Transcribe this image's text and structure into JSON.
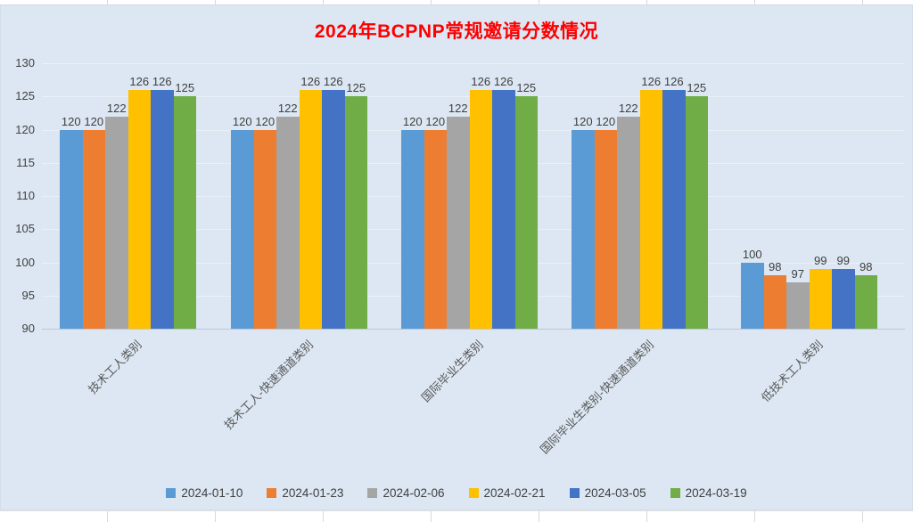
{
  "chart_data": {
    "type": "bar",
    "title": "2024年BCPNP常规邀请分数情况",
    "categories": [
      "技术工人类别",
      "技术工人-快速通道类别",
      "国际毕业生类别",
      "国际毕业生类别-快速通道类别",
      "低技术工人类别"
    ],
    "series": [
      {
        "name": "2024-01-10",
        "color": "#5b9bd5",
        "values": [
          120,
          120,
          120,
          120,
          100
        ]
      },
      {
        "name": "2024-01-23",
        "color": "#ed7d31",
        "values": [
          120,
          120,
          120,
          120,
          98
        ]
      },
      {
        "name": "2024-02-06",
        "color": "#a5a5a5",
        "values": [
          122,
          122,
          122,
          122,
          97
        ]
      },
      {
        "name": "2024-02-21",
        "color": "#ffc000",
        "values": [
          126,
          126,
          126,
          126,
          99
        ]
      },
      {
        "name": "2024-03-05",
        "color": "#4472c4",
        "values": [
          126,
          126,
          126,
          126,
          99
        ]
      },
      {
        "name": "2024-03-19",
        "color": "#70ad47",
        "values": [
          125,
          125,
          125,
          125,
          98
        ]
      }
    ],
    "ylim": [
      90,
      130
    ],
    "yticks": [
      90,
      95,
      100,
      105,
      110,
      115,
      120,
      125,
      130
    ],
    "grid": true,
    "data_labels": true,
    "legend_position": "bottom",
    "colors": {
      "chart_background": "#dce7f3",
      "title_text": "#fe0000",
      "axis_text": "#404040",
      "category_text": "#595959",
      "gridline": "#eaf0f8"
    }
  }
}
